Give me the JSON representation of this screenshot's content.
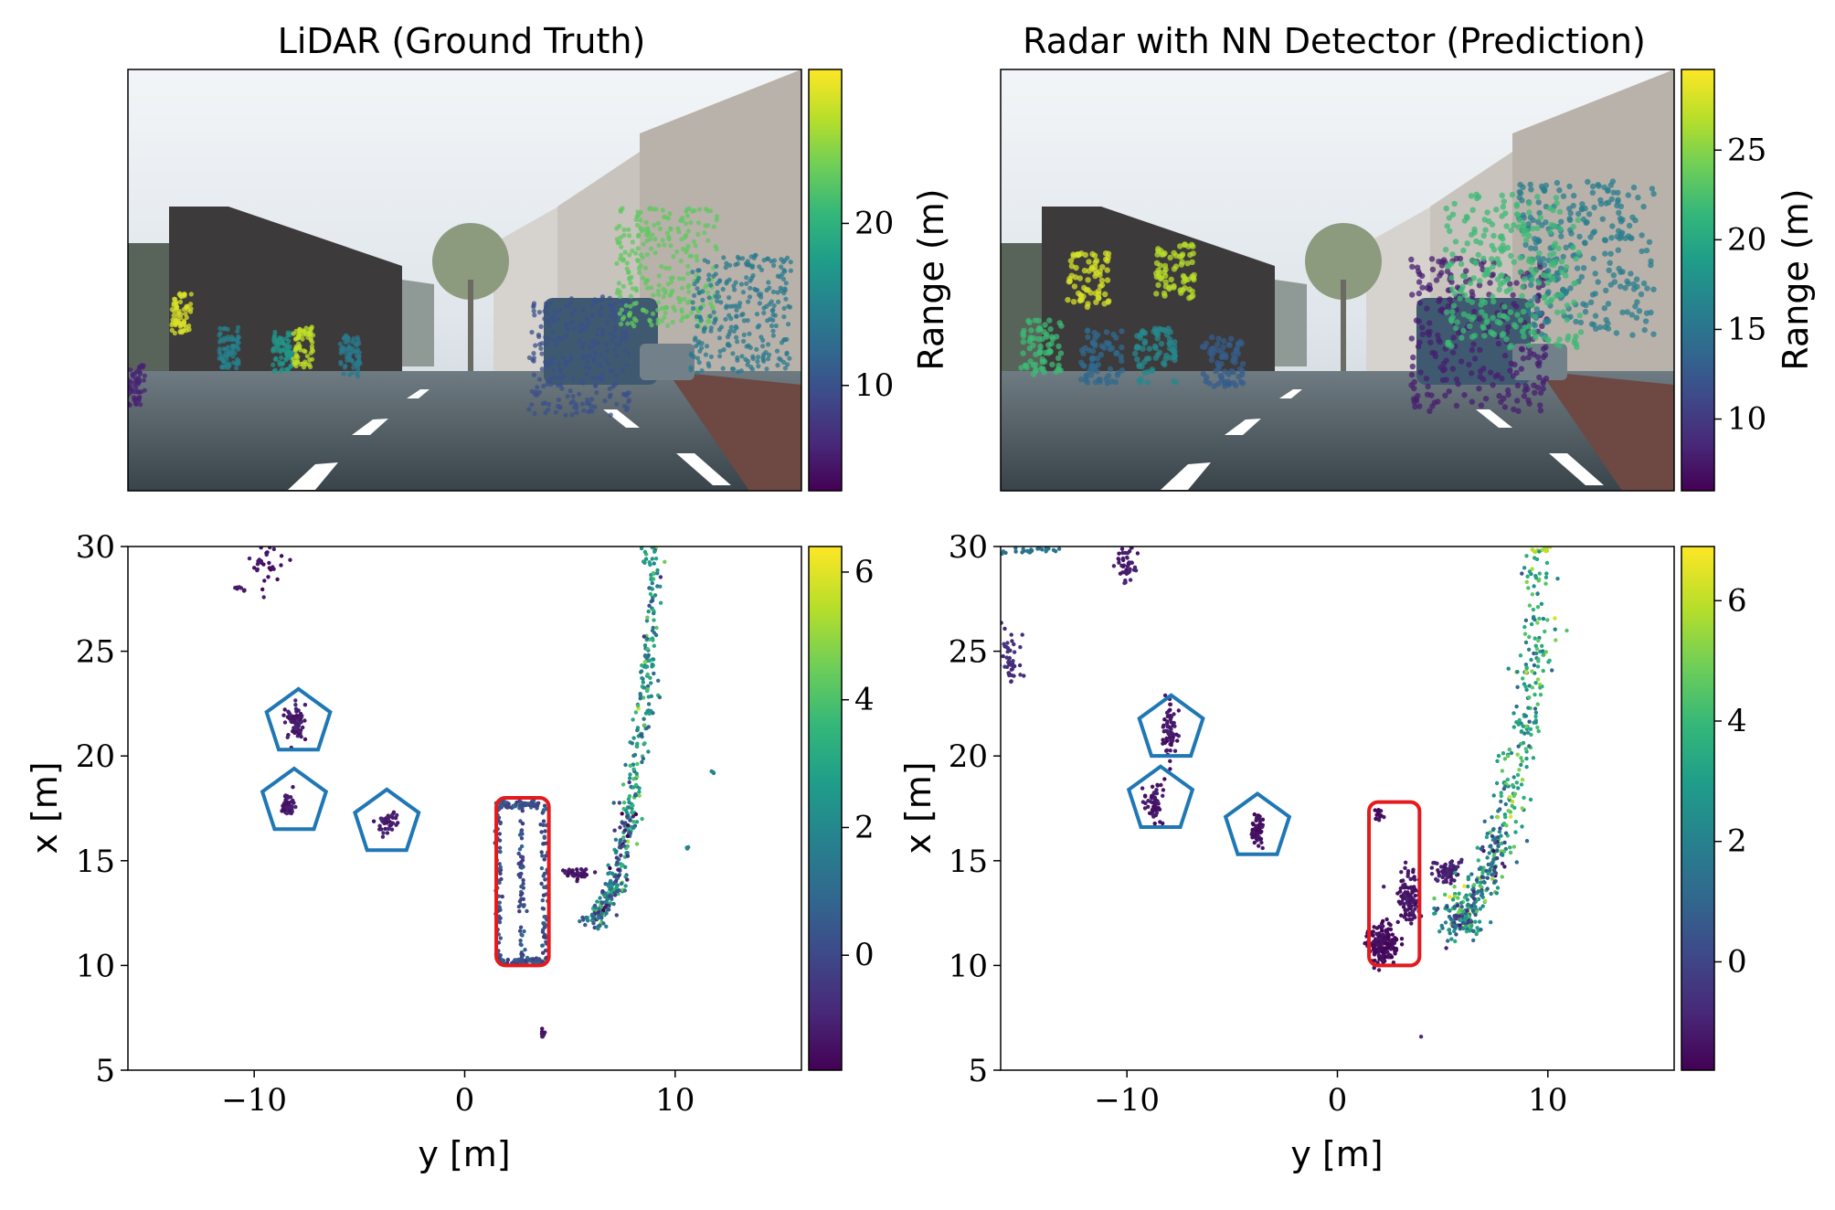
{
  "figure": {
    "left_title": "LiDAR (Ground Truth)",
    "right_title": "Radar with NN Detector (Prediction)"
  },
  "colors": {
    "viridis": [
      "#440154",
      "#482878",
      "#3e4989",
      "#31688e",
      "#26828e",
      "#1f9e89",
      "#35b779",
      "#6ece58",
      "#b5de2b",
      "#fde725"
    ],
    "pedestrian_marker": "#1f77b4",
    "vehicle_marker": "#e41a1c"
  },
  "chart_data": [
    {
      "panel": "top-left",
      "type": "scatter",
      "subtype": "camera image with projected LiDAR points",
      "title": "LiDAR (Ground Truth)",
      "colorbar": {
        "label": "Range (m)",
        "range": [
          3.5,
          29.5
        ],
        "ticks": [
          10,
          20
        ],
        "tick_labels": [
          "10",
          "20"
        ]
      },
      "clusters": [
        {
          "object": "pedestrian",
          "range_m": 28,
          "u": 0.08,
          "v": 0.58
        },
        {
          "object": "pedestrian",
          "range_m": 15,
          "u": 0.15,
          "v": 0.66
        },
        {
          "object": "cyclist",
          "range_m": 17,
          "u": 0.23,
          "v": 0.67
        },
        {
          "object": "cyclist",
          "range_m": 27,
          "u": 0.26,
          "v": 0.66
        },
        {
          "object": "pedestrian",
          "range_m": 14,
          "u": 0.33,
          "v": 0.68
        },
        {
          "object": "car",
          "range_m": 10,
          "u": 0.67,
          "v": 0.68
        },
        {
          "object": "building",
          "range_m": 23,
          "u": 0.8,
          "v": 0.47
        },
        {
          "object": "building",
          "range_m": 14,
          "u": 0.91,
          "v": 0.58
        },
        {
          "object": "pedestrian",
          "range_m": 6,
          "u": 0.01,
          "v": 0.75
        }
      ]
    },
    {
      "panel": "top-right",
      "type": "scatter",
      "subtype": "camera image with projected radar detections",
      "title": "Radar with NN Detector (Prediction)",
      "colorbar": {
        "label": "Range (m)",
        "range": [
          6,
          29.5
        ],
        "ticks": [
          10,
          15,
          20,
          25
        ],
        "tick_labels": [
          "10",
          "15",
          "20",
          "25"
        ]
      },
      "clusters": [
        {
          "object": "pedestrian",
          "range_m": 28,
          "u": 0.13,
          "v": 0.5
        },
        {
          "object": "pedestrian",
          "range_m": 27,
          "u": 0.26,
          "v": 0.48
        },
        {
          "object": "pedestrian",
          "range_m": 14,
          "u": 0.15,
          "v": 0.68
        },
        {
          "object": "cyclist",
          "range_m": 17,
          "u": 0.23,
          "v": 0.68
        },
        {
          "object": "cyclist",
          "range_m": 22,
          "u": 0.06,
          "v": 0.66
        },
        {
          "object": "pedestrian",
          "range_m": 13,
          "u": 0.33,
          "v": 0.69
        },
        {
          "object": "car",
          "range_m": 8,
          "u": 0.71,
          "v": 0.63
        },
        {
          "object": "building",
          "range_m": 16,
          "u": 0.87,
          "v": 0.45
        },
        {
          "object": "building",
          "range_m": 22,
          "u": 0.76,
          "v": 0.48
        }
      ]
    },
    {
      "panel": "bottom-left",
      "type": "scatter",
      "subtype": "bird's-eye view point cloud, colour = height",
      "xlabel": "y [m]",
      "ylabel": "x [m]",
      "xlim": [
        -16,
        16
      ],
      "ylim": [
        5,
        30
      ],
      "xticks": [
        -10,
        0,
        10
      ],
      "xtick_labels": [
        "−10",
        "0",
        "10"
      ],
      "yticks": [
        5,
        10,
        15,
        20,
        25,
        30
      ],
      "ytick_labels": [
        "5",
        "10",
        "15",
        "20",
        "25",
        "30"
      ],
      "colorbar": {
        "range": [
          -1.8,
          6.4
        ],
        "ticks": [
          0,
          2,
          4,
          6
        ],
        "tick_labels": [
          "0",
          "2",
          "4",
          "6"
        ]
      },
      "clusters": [
        {
          "y": -9.3,
          "x": 29.2,
          "sy": 0.8,
          "sx": 1.2,
          "h": -1.4,
          "n": 30
        },
        {
          "y": -10.7,
          "x": 28.0,
          "sy": 0.3,
          "sx": 0.2,
          "h": -1.4,
          "n": 8
        },
        {
          "y": -8.0,
          "x": 21.6,
          "sy": 0.45,
          "sx": 0.8,
          "h": -1.2,
          "n": 70
        },
        {
          "y": -8.4,
          "x": 17.7,
          "sy": 0.3,
          "sx": 0.6,
          "h": -1.2,
          "n": 45
        },
        {
          "y": -3.7,
          "x": 16.8,
          "sy": 0.5,
          "sx": 0.5,
          "h": -1.1,
          "n": 45
        },
        {
          "y": 5.3,
          "x": 14.4,
          "sy": 0.5,
          "sx": 0.3,
          "h": -1.3,
          "n": 35
        },
        {
          "y": 3.7,
          "x": 6.7,
          "sy": 0.15,
          "sx": 0.2,
          "h": -1.4,
          "n": 8
        },
        {
          "y": 11.8,
          "x": 19.2,
          "sy": 0.1,
          "sx": 0.1,
          "h": 2.0,
          "n": 3
        },
        {
          "y": 10.6,
          "x": 15.6,
          "sy": 0.1,
          "sx": 0.1,
          "h": 2.0,
          "n": 3
        }
      ],
      "boxes": [
        {
          "object": "car",
          "y0": 1.6,
          "y1": 3.8,
          "x0": 10.2,
          "x1": 17.7,
          "h": 0.3
        }
      ],
      "polylines": [
        {
          "object": "wall",
          "h": 2.5,
          "spread": 0.22,
          "n": 340,
          "points": [
            [
              8.9,
              30
            ],
            [
              8.9,
              26
            ],
            [
              8.6,
              23
            ],
            [
              8.2,
              20
            ],
            [
              7.8,
              17
            ],
            [
              7.2,
              14
            ],
            [
              6.6,
              12.8
            ],
            [
              6.2,
              12.2
            ]
          ]
        },
        {
          "object": "kerb",
          "h": 0.2,
          "spread": 0.3,
          "n": 90,
          "points": [
            [
              7.8,
              17.5
            ],
            [
              7.3,
              14.5
            ],
            [
              6.5,
              12.5
            ],
            [
              6.0,
              12.0
            ]
          ]
        }
      ],
      "annotations": [
        {
          "shape": "pentagon",
          "object": "pedestrian",
          "y": -7.9,
          "x": 21.6,
          "r": 1.6
        },
        {
          "shape": "pentagon",
          "object": "pedestrian",
          "y": -8.1,
          "x": 17.8,
          "r": 1.6
        },
        {
          "shape": "pentagon",
          "object": "pedestrian",
          "y": -3.7,
          "x": 16.8,
          "r": 1.6
        },
        {
          "shape": "rounded-rectangle",
          "object": "car",
          "y0": 1.5,
          "y1": 4.0,
          "x0": 10.0,
          "x1": 18.0
        }
      ]
    },
    {
      "panel": "bottom-right",
      "type": "scatter",
      "subtype": "bird's-eye view radar detections, colour = height",
      "xlabel": "y [m]",
      "ylabel": "x [m]",
      "xlim": [
        -16,
        16
      ],
      "ylim": [
        5,
        30
      ],
      "xticks": [
        -10,
        0,
        10
      ],
      "xtick_labels": [
        "−10",
        "0",
        "10"
      ],
      "yticks": [
        5,
        10,
        15,
        20,
        25,
        30
      ],
      "ytick_labels": [
        "5",
        "10",
        "15",
        "20",
        "25",
        "30"
      ],
      "colorbar": {
        "range": [
          -1.8,
          6.9
        ],
        "ticks": [
          0,
          2,
          4,
          6
        ],
        "tick_labels": [
          "0",
          "2",
          "4",
          "6"
        ]
      },
      "clusters": [
        {
          "y": -8.0,
          "x": 21.1,
          "sy": 0.35,
          "sx": 1.4,
          "h": -1.3,
          "n": 60
        },
        {
          "y": -8.7,
          "x": 17.8,
          "sy": 0.5,
          "sx": 0.9,
          "h": -1.3,
          "n": 60
        },
        {
          "y": -3.8,
          "x": 16.5,
          "sy": 0.3,
          "sx": 0.7,
          "h": -1.4,
          "n": 50
        },
        {
          "y": 2.2,
          "x": 11.0,
          "sy": 0.7,
          "sx": 0.9,
          "h": -1.5,
          "n": 170
        },
        {
          "y": 3.4,
          "x": 13.3,
          "sy": 0.5,
          "sx": 1.2,
          "h": -1.3,
          "n": 110
        },
        {
          "y": 5.2,
          "x": 14.5,
          "sy": 0.7,
          "sx": 0.5,
          "h": -1.0,
          "n": 70
        },
        {
          "y": 2.0,
          "x": 17.2,
          "sy": 0.2,
          "sx": 0.3,
          "h": -1.4,
          "n": 12
        },
        {
          "y": -10.0,
          "x": 29.3,
          "sy": 0.5,
          "sx": 1.0,
          "h": -1.1,
          "n": 45
        },
        {
          "y": -15.6,
          "x": 24.5,
          "sy": 0.5,
          "sx": 1.3,
          "h": -0.6,
          "n": 45
        },
        {
          "y": -14.6,
          "x": 29.8,
          "sy": 1.2,
          "sx": 0.2,
          "h": 1.5,
          "n": 25
        },
        {
          "y": 9.8,
          "x": 29.8,
          "sy": 0.6,
          "sx": 0.2,
          "h": 6.0,
          "n": 12
        },
        {
          "y": 3.9,
          "x": 6.6,
          "sy": 0.05,
          "sx": 0.05,
          "h": -1.0,
          "n": 1
        }
      ],
      "boxes": [],
      "polylines": [
        {
          "object": "wall",
          "h": 3.5,
          "spread": 0.45,
          "n": 380,
          "points": [
            [
              9.2,
              29.5
            ],
            [
              9.6,
              26
            ],
            [
              9.3,
              23
            ],
            [
              8.6,
              20
            ],
            [
              7.9,
              17
            ],
            [
              7.2,
              14.5
            ],
            [
              6.4,
              13
            ],
            [
              5.4,
              12.5
            ],
            [
              6.2,
              12.0
            ]
          ]
        },
        {
          "object": "kerb",
          "h": 1.0,
          "spread": 0.35,
          "n": 120,
          "points": [
            [
              7.6,
              16.0
            ],
            [
              7.0,
              14.0
            ],
            [
              6.2,
              12.4
            ],
            [
              5.2,
              11.8
            ]
          ]
        }
      ],
      "annotations": [
        {
          "shape": "pentagon",
          "object": "pedestrian",
          "y": -7.9,
          "x": 21.3,
          "r": 1.6
        },
        {
          "shape": "pentagon",
          "object": "pedestrian",
          "y": -8.4,
          "x": 17.9,
          "r": 1.6
        },
        {
          "shape": "pentagon",
          "object": "pedestrian",
          "y": -3.8,
          "x": 16.6,
          "r": 1.6
        },
        {
          "shape": "rounded-rectangle",
          "object": "car",
          "y0": 1.5,
          "y1": 3.9,
          "x0": 10.0,
          "x1": 17.8
        }
      ]
    }
  ]
}
